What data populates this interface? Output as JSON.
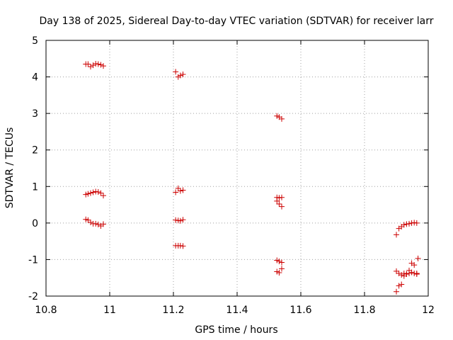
{
  "chart_data": {
    "type": "scatter",
    "title": "Day 138 of 2025, Sidereal Day-to-day VTEC variation (SDTVAR) for receiver larr",
    "xlabel": "GPS time / hours",
    "ylabel": "SDTVAR / TECUs",
    "xlim": [
      10.8,
      12
    ],
    "ylim": [
      -2,
      5
    ],
    "xticks": [
      "10.8",
      "11",
      "11.2",
      "11.4",
      "11.6",
      "11.8",
      "12"
    ],
    "yticks": [
      "-2",
      "-1",
      "0",
      "1",
      "2",
      "3",
      "4",
      "5"
    ],
    "grid": true,
    "marker": "plus",
    "color": "#cc0000",
    "series": [
      {
        "name": "SDTVAR",
        "x": [
          10.925,
          10.932,
          10.94,
          10.948,
          10.956,
          10.964,
          10.972,
          10.98,
          10.925,
          10.932,
          10.94,
          10.948,
          10.956,
          10.964,
          10.972,
          10.98,
          10.925,
          10.932,
          10.94,
          10.948,
          10.956,
          10.964,
          10.972,
          10.98,
          11.207,
          11.215,
          11.222,
          11.23,
          11.207,
          11.215,
          11.222,
          11.23,
          11.207,
          11.215,
          11.222,
          11.23,
          11.207,
          11.215,
          11.222,
          11.23,
          11.525,
          11.532,
          11.54,
          11.525,
          11.532,
          11.54,
          11.525,
          11.532,
          11.54,
          11.525,
          11.532,
          11.54,
          11.525,
          11.532,
          11.54,
          11.9,
          11.908,
          11.916,
          11.924,
          11.932,
          11.94,
          11.948,
          11.956,
          11.964,
          11.9,
          11.908,
          11.916,
          11.924,
          11.932,
          11.94,
          11.948,
          11.956,
          11.964,
          11.9,
          11.908,
          11.916,
          11.924,
          11.932,
          11.94,
          11.948,
          11.956,
          11.964,
          11.968
        ],
        "y": [
          4.35,
          4.35,
          4.28,
          4.32,
          4.36,
          4.35,
          4.33,
          4.3,
          0.78,
          0.8,
          0.82,
          0.84,
          0.86,
          0.85,
          0.82,
          0.75,
          0.1,
          0.08,
          0.02,
          -0.02,
          -0.02,
          -0.04,
          -0.08,
          -0.03,
          4.14,
          4.0,
          4.04,
          4.07,
          0.84,
          0.95,
          0.88,
          0.9,
          0.08,
          0.07,
          0.06,
          0.09,
          -0.62,
          -0.62,
          -0.62,
          -0.63,
          2.93,
          2.9,
          2.85,
          0.7,
          0.69,
          0.7,
          0.6,
          0.52,
          0.45,
          -1.02,
          -1.05,
          -1.08,
          -1.33,
          -1.36,
          -1.25,
          -0.32,
          -0.15,
          -0.1,
          -0.05,
          -0.03,
          -0.02,
          0.0,
          0.01,
          0.0,
          -1.32,
          -1.38,
          -1.42,
          -1.45,
          -1.4,
          -1.38,
          -1.35,
          -1.38,
          -1.4,
          -1.88,
          -1.72,
          -1.68,
          -1.38,
          -1.4,
          -1.3,
          -1.1,
          -1.15,
          -1.38,
          -0.97
        ]
      }
    ]
  }
}
